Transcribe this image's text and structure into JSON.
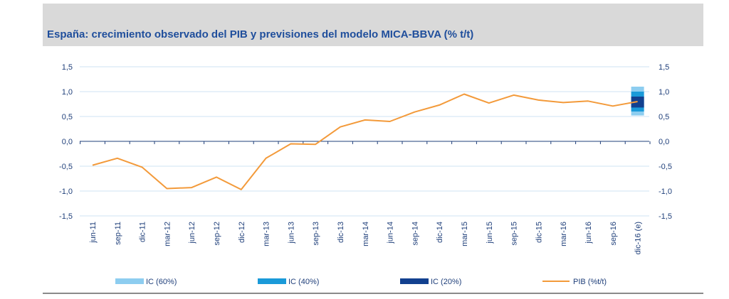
{
  "chart_data": {
    "type": "line",
    "title": "España: crecimiento observado del PIB y previsiones del modelo MICA-BBVA (% t/t)",
    "categories": [
      "jun-11",
      "sep-11",
      "dic-11",
      "mar-12",
      "jun-12",
      "sep-12",
      "dic-12",
      "mar-13",
      "jun-13",
      "sep-13",
      "dic-13",
      "mar-14",
      "jun-14",
      "sep-14",
      "dic-14",
      "mar-15",
      "jun-15",
      "sep-15",
      "dic-15",
      "mar-16",
      "jun-16",
      "sep-16",
      "dic-16 (e)"
    ],
    "series": [
      {
        "name": "PIB (%t/t)",
        "color": "#f39a3a",
        "values": [
          -0.48,
          -0.34,
          -0.52,
          -0.95,
          -0.93,
          -0.72,
          -0.97,
          -0.34,
          -0.05,
          -0.06,
          0.29,
          0.43,
          0.4,
          0.59,
          0.73,
          0.95,
          0.77,
          0.93,
          0.83,
          0.78,
          0.81,
          0.71,
          0.8
        ]
      }
    ],
    "confidence_intervals": [
      {
        "name": "IC (60%)",
        "color": "#8dcdf0",
        "low": 0.52,
        "high": 1.1
      },
      {
        "name": "IC (40%)",
        "color": "#1a9ad9",
        "low": 0.6,
        "high": 1.0
      },
      {
        "name": "IC (20%)",
        "color": "#12408f",
        "low": 0.68,
        "high": 0.9
      }
    ],
    "yticks": [
      "1,5",
      "1,0",
      "0,5",
      "0,0",
      "-0,5",
      "-1,0",
      "-1,5"
    ],
    "ytick_values": [
      1.5,
      1.0,
      0.5,
      0.0,
      -0.5,
      -1.0,
      -1.5
    ],
    "ylim": [
      -1.5,
      1.5
    ],
    "grid": true,
    "legend_position": "bottom"
  }
}
